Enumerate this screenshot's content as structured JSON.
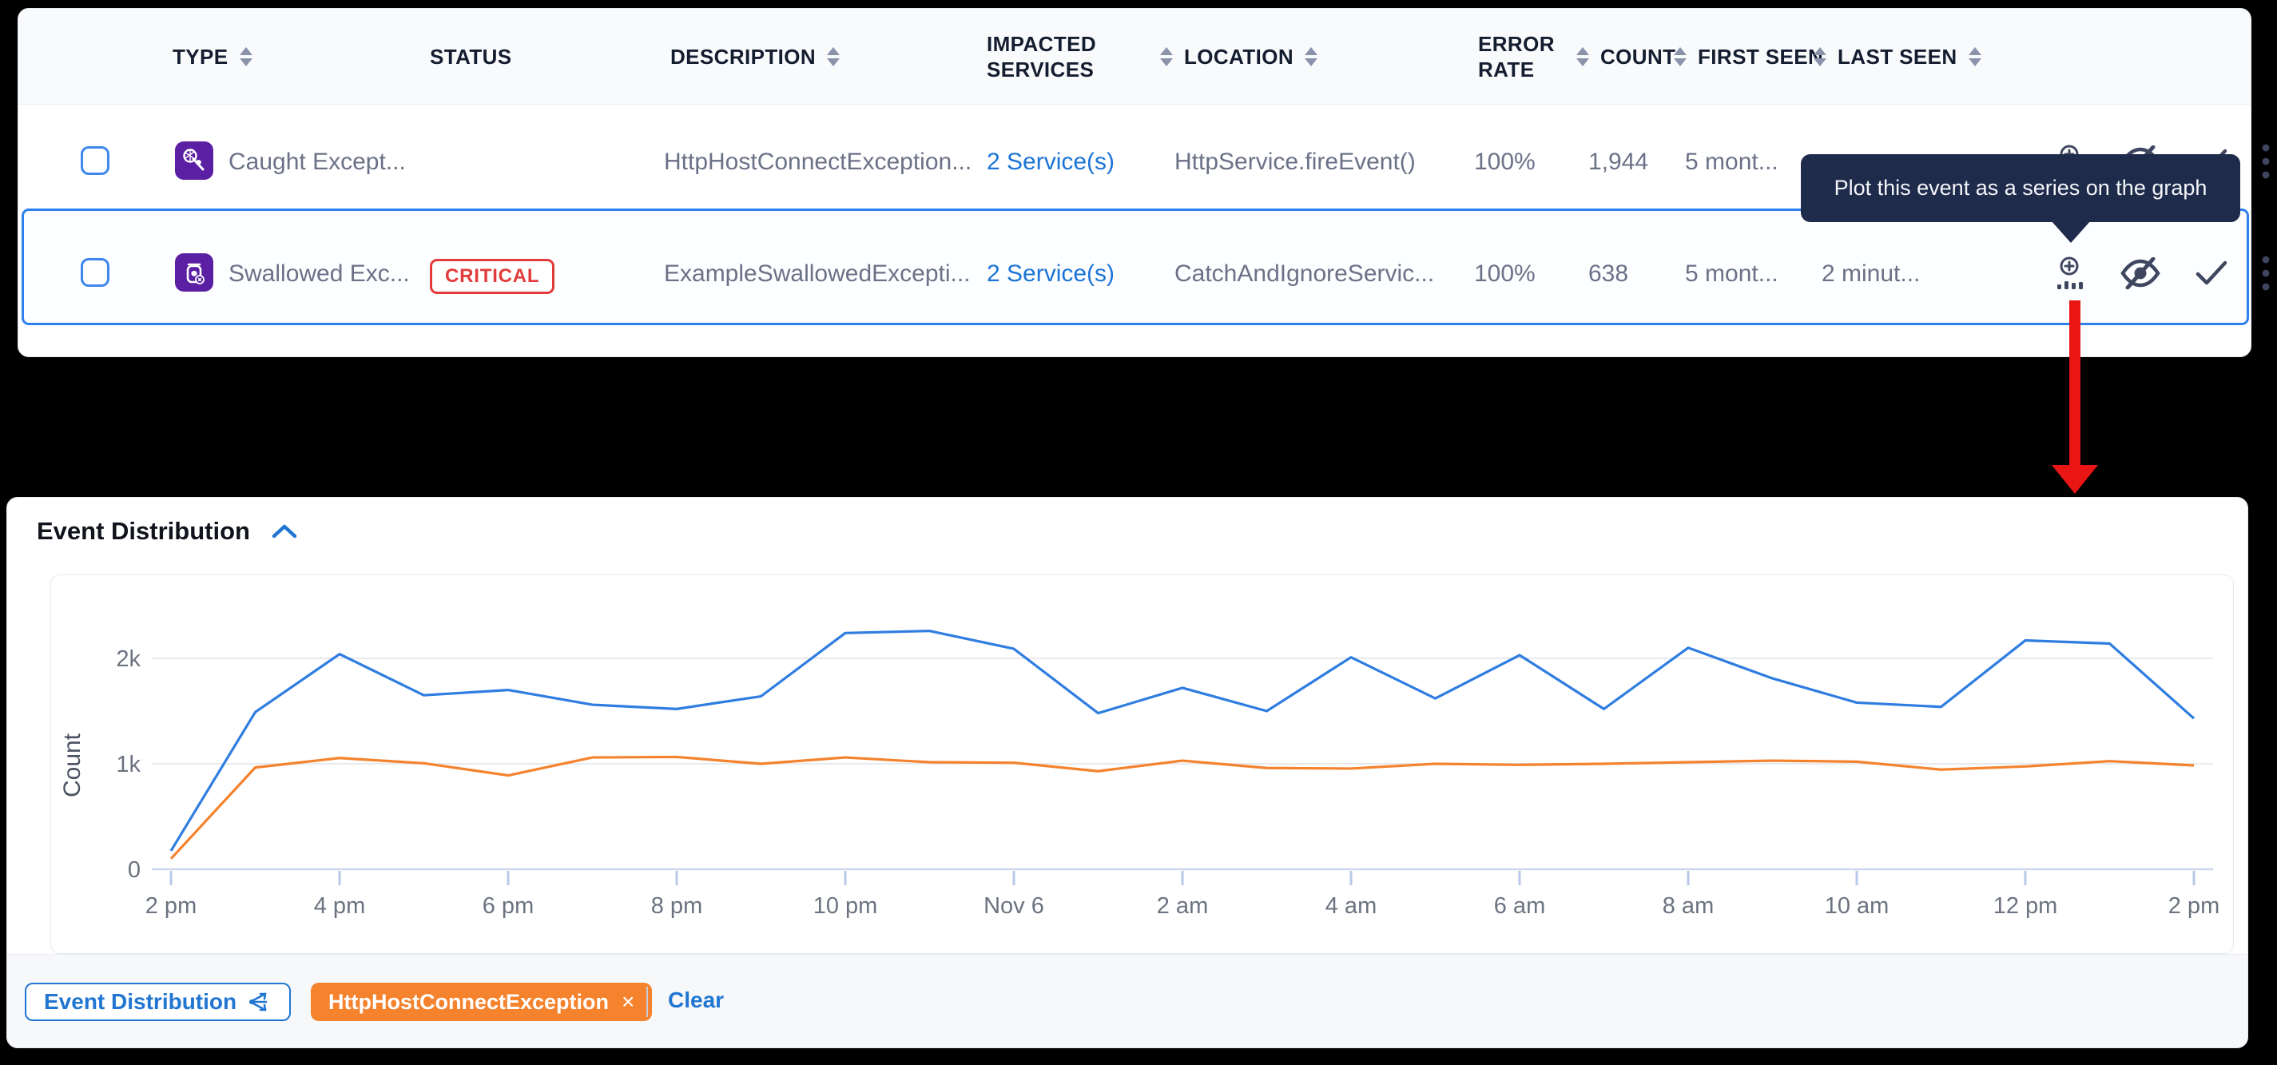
{
  "table": {
    "headers": {
      "type": "TYPE",
      "status": "STATUS",
      "description": "DESCRIPTION",
      "impacted_line1": "IMPACTED",
      "impacted_line2": "SERVICES",
      "location": "LOCATION",
      "error_line1": "ERROR",
      "error_line2": "RATE",
      "count": "COUNT",
      "first_seen": "FIRST SEEN",
      "last_seen": "LAST SEEN"
    },
    "rows": [
      {
        "type_label": "Caught Except...",
        "status": "",
        "description": "HttpHostConnectException...",
        "impacted": "2 Service(s)",
        "location": "HttpService.fireEvent()",
        "error_rate": "100%",
        "count": "1,944",
        "first_seen": "5 mont...",
        "last_seen": ""
      },
      {
        "type_label": "Swallowed Exc...",
        "status": "CRITICAL",
        "description": "ExampleSwallowedExcepti...",
        "impacted": "2 Service(s)",
        "location": "CatchAndIgnoreServic...",
        "error_rate": "100%",
        "count": "638",
        "first_seen": "5 mont...",
        "last_seen": "2 minut..."
      }
    ],
    "icons": {
      "row_type_1": "caught-exception-icon",
      "row_type_2": "swallowed-exception-icon",
      "actions": [
        "plot-on-graph-icon",
        "hide-eye-slash-icon",
        "checkmark-icon",
        "kebab-menu-icon"
      ]
    }
  },
  "tooltip": {
    "text": "Plot this event as a series on the graph"
  },
  "chart": {
    "title": "Event Distribution",
    "collapse_icon": "chevron-up"
  },
  "chart_data": {
    "type": "line",
    "title": "Event Distribution",
    "xlabel": "",
    "ylabel": "Count",
    "ylim": [
      0,
      2400
    ],
    "grid": "horizontal",
    "y_tick_labels": [
      "0",
      "1k",
      "2k"
    ],
    "y_tick_values": [
      0,
      1000,
      2000
    ],
    "x_tick_labels": [
      "2 pm",
      "4 pm",
      "6 pm",
      "8 pm",
      "10 pm",
      "Nov 6",
      "2 am",
      "4 am",
      "6 am",
      "8 am",
      "10 am",
      "12 pm",
      "2 pm"
    ],
    "points_per_tick_interval": 2,
    "series": [
      {
        "name": "Event Distribution",
        "color": "#2f7de1",
        "values": [
          175,
          1490,
          2040,
          1650,
          1700,
          1560,
          1520,
          1640,
          2240,
          2260,
          2090,
          1480,
          1720,
          1500,
          2010,
          1620,
          2030,
          1520,
          2100,
          1810,
          1580,
          1540,
          2170,
          2140,
          1430
        ]
      },
      {
        "name": "HttpHostConnectException",
        "color": "#f5822d",
        "values": [
          100,
          965,
          1055,
          1005,
          890,
          1060,
          1065,
          1000,
          1060,
          1015,
          1010,
          930,
          1030,
          960,
          955,
          1000,
          990,
          1000,
          1015,
          1030,
          1020,
          945,
          975,
          1025,
          985
        ]
      }
    ],
    "legend_position": "bottom"
  },
  "legend": {
    "series_button": "Event Distribution",
    "series_chip": "HttpHostConnectException",
    "chip_close": "×",
    "clear": "Clear"
  },
  "colors": {
    "accent_blue": "#2176d2",
    "link_blue": "#1b74d6",
    "selected_border": "#2e80ee",
    "chart_blue": "#2f7de1",
    "chart_orange": "#f5822d",
    "chip_orange": "#f5822d",
    "critical_red": "#e23b3b",
    "tooltip_navy": "#1f2b4b",
    "arrow_red": "#ea1515",
    "type_purple": "#5a1fa3"
  }
}
